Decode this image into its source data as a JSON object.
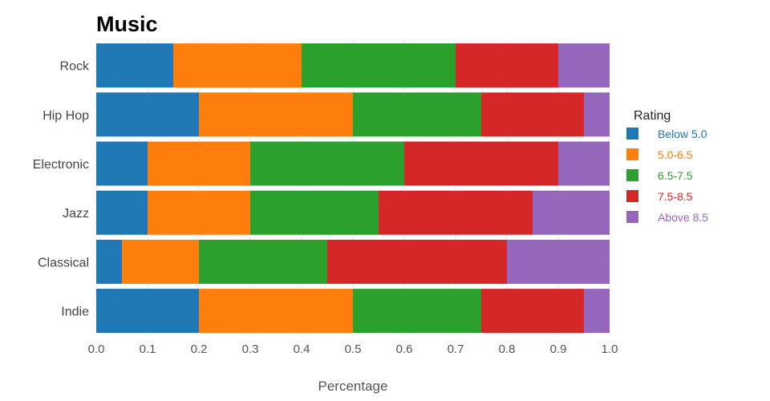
{
  "chart_data": {
    "type": "bar",
    "orientation": "horizontal",
    "stacked": true,
    "title": "Music",
    "xlabel": "Percentage",
    "ylabel": "",
    "xlim": [
      0,
      1.0
    ],
    "xticks": [
      "0.0",
      "0.1",
      "0.2",
      "0.3",
      "0.4",
      "0.5",
      "0.6",
      "0.7",
      "0.8",
      "0.9",
      "1.0"
    ],
    "categories": [
      "Rock",
      "Hip Hop",
      "Electronic",
      "Jazz",
      "Classical",
      "Indie"
    ],
    "legend_title": "Rating",
    "legend_position": "right",
    "grid": true,
    "series": [
      {
        "name": "Below 5.0",
        "color": "#1f77b4",
        "values": [
          0.15,
          0.2,
          0.1,
          0.1,
          0.05,
          0.2
        ]
      },
      {
        "name": "5.0-6.5",
        "color": "#ff7f0e",
        "values": [
          0.25,
          0.3,
          0.2,
          0.2,
          0.15,
          0.3
        ]
      },
      {
        "name": "6.5-7.5",
        "color": "#2ca02c",
        "values": [
          0.3,
          0.25,
          0.3,
          0.25,
          0.25,
          0.25
        ]
      },
      {
        "name": "7.5-8.5",
        "color": "#d62728",
        "values": [
          0.2,
          0.2,
          0.3,
          0.3,
          0.35,
          0.2
        ]
      },
      {
        "name": "Above 8.5",
        "color": "#9467bd",
        "values": [
          0.1,
          0.05,
          0.1,
          0.15,
          0.2,
          0.05
        ]
      }
    ]
  }
}
